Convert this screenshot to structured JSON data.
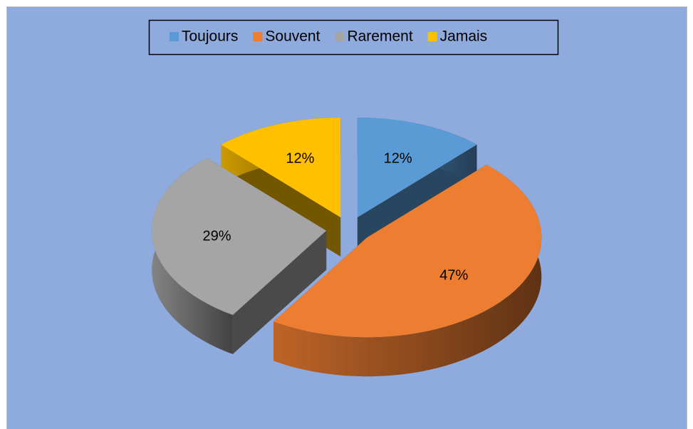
{
  "chart_data": {
    "type": "pie",
    "categories": [
      "Toujours",
      "Souvent",
      "Rarement",
      "Jamais"
    ],
    "values": [
      12,
      47,
      29,
      12
    ],
    "value_labels": [
      "12%",
      "47%",
      "29%",
      "12%"
    ],
    "colors": [
      "#5b9bd5",
      "#ed7d31",
      "#a5a5a5",
      "#ffc000"
    ],
    "legend": "top"
  }
}
